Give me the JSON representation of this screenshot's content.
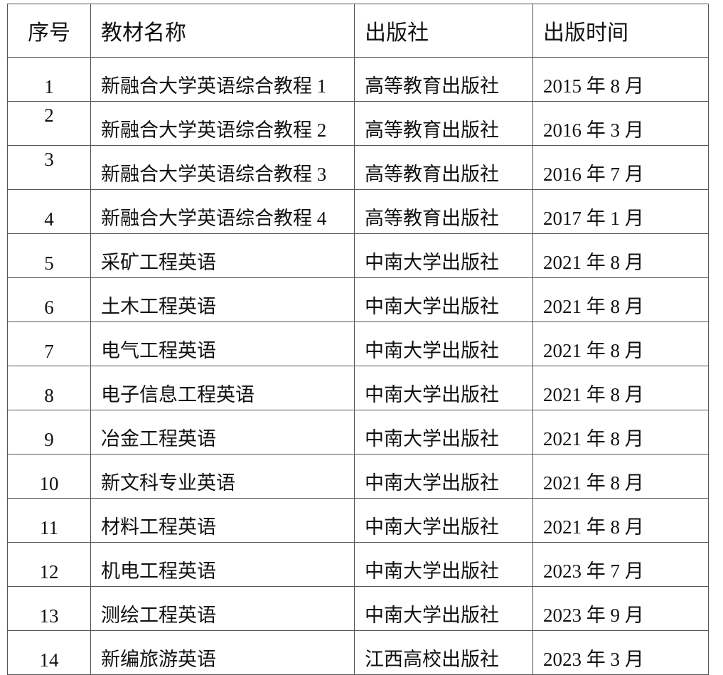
{
  "headers": [
    "序号",
    "教材名称",
    "出版社",
    "出版时间"
  ],
  "rows": [
    {
      "no": "1",
      "name": "新融合大学英语综合教程 1",
      "publisher": "高等教育出版社",
      "date": "2015 年 8 月"
    },
    {
      "no": "2",
      "name": "新融合大学英语综合教程 2",
      "publisher": "高等教育出版社",
      "date": "2016 年 3 月"
    },
    {
      "no": "3",
      "name": "新融合大学英语综合教程 3",
      "publisher": "高等教育出版社",
      "date": "2016 年 7 月"
    },
    {
      "no": "4",
      "name": "新融合大学英语综合教程 4",
      "publisher": "高等教育出版社",
      "date": "2017 年 1 月"
    },
    {
      "no": "5",
      "name": "采矿工程英语",
      "publisher": "中南大学出版社",
      "date": "2021 年 8 月"
    },
    {
      "no": "6",
      "name": "土木工程英语",
      "publisher": "中南大学出版社",
      "date": "2021 年 8 月"
    },
    {
      "no": "7",
      "name": "电气工程英语",
      "publisher": "中南大学出版社",
      "date": "2021 年 8 月"
    },
    {
      "no": "8",
      "name": "电子信息工程英语",
      "publisher": "中南大学出版社",
      "date": "2021 年 8 月"
    },
    {
      "no": "9",
      "name": "冶金工程英语",
      "publisher": "中南大学出版社",
      "date": "2021 年 8 月"
    },
    {
      "no": "10",
      "name": "新文科专业英语",
      "publisher": "中南大学出版社",
      "date": "2021 年 8 月"
    },
    {
      "no": "11",
      "name": "材料工程英语",
      "publisher": "中南大学出版社",
      "date": "2021 年 8 月"
    },
    {
      "no": "12",
      "name": "机电工程英语",
      "publisher": "中南大学出版社",
      "date": "2023 年 7 月"
    },
    {
      "no": "13",
      "name": "测绘工程英语",
      "publisher": "中南大学出版社",
      "date": "2023 年 9 月"
    },
    {
      "no": "14",
      "name": "新编旅游英语",
      "publisher": "江西高校出版社",
      "date": "2023 年 3 月"
    }
  ]
}
